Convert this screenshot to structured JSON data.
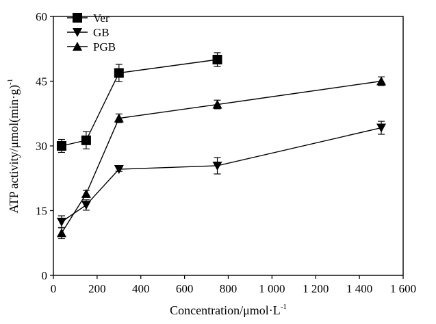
{
  "chart_data": {
    "type": "line",
    "xlabel": "Concentration/μmol·L",
    "xlabel_sup": "-1",
    "ylabel": "ATP activity/μmol(min·g)",
    "ylabel_sup": "-1",
    "xlim": [
      0,
      1600
    ],
    "ylim": [
      0,
      60
    ],
    "xticks": [
      0,
      200,
      400,
      600,
      800,
      1000,
      1200,
      1400,
      1600
    ],
    "xtick_labels": [
      "0",
      "200",
      "400",
      "600",
      "800",
      "1 000",
      "1 200",
      "1 400",
      "1 600"
    ],
    "yticks": [
      0,
      15,
      30,
      45,
      60
    ],
    "ytick_labels": [
      "0",
      "15",
      "30",
      "45",
      "60"
    ],
    "grid": false,
    "legend_position": "top-left",
    "series": [
      {
        "name": "Ver",
        "marker": "square",
        "x": [
          37.5,
          150,
          300,
          750
        ],
        "y": [
          30.0,
          31.3,
          46.9,
          50.0
        ],
        "err": [
          1.5,
          2.0,
          2.0,
          1.6
        ]
      },
      {
        "name": "GB",
        "marker": "triangle-down",
        "x": [
          37.5,
          150,
          300,
          750,
          1500
        ],
        "y": [
          12.4,
          16.3,
          24.6,
          25.4,
          34.2
        ],
        "err": [
          1.4,
          1.2,
          0.5,
          1.9,
          1.5
        ]
      },
      {
        "name": "PGB",
        "marker": "triangle-up",
        "x": [
          37.5,
          150,
          300,
          750,
          1500
        ],
        "y": [
          9.8,
          18.9,
          36.4,
          39.6,
          45.0
        ],
        "err": [
          1.3,
          0.8,
          1.0,
          1.0,
          1.0
        ]
      }
    ]
  }
}
